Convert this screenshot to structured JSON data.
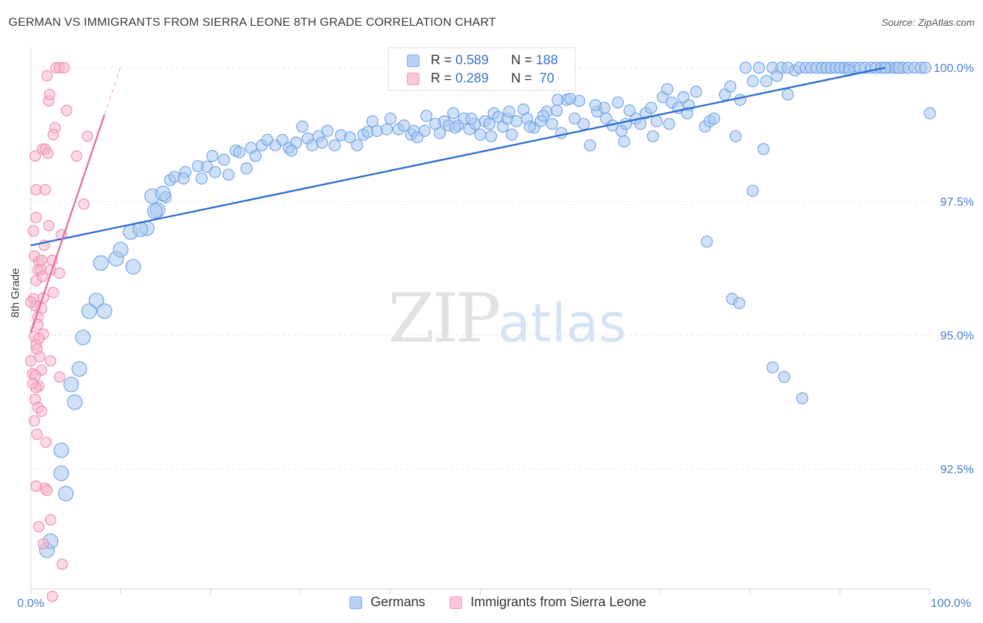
{
  "header": {
    "title": "GERMAN VS IMMIGRANTS FROM SIERRA LEONE 8TH GRADE CORRELATION CHART",
    "source": "Source: ZipAtlas.com"
  },
  "watermark": {
    "zip": "ZIP",
    "atlas": "atlas"
  },
  "legend": {
    "rows": [
      {
        "r_label": "R =",
        "r_value": "0.589",
        "n_label": "N =",
        "n_value": "188",
        "color": "#a9c8f0"
      },
      {
        "r_label": "R =",
        "r_value": "0.289",
        "n_label": "N =",
        "n_value": " 70",
        "color": "#f7b8ca"
      }
    ]
  },
  "bottom_legend": {
    "items": [
      {
        "label": "Germans",
        "color": "#a9c8f0"
      },
      {
        "label": "Immigrants from Sierra Leone",
        "color": "#f7b8ca"
      }
    ]
  },
  "chart_data": {
    "type": "scatter",
    "title": "GERMAN VS IMMIGRANTS FROM SIERRA LEONE 8TH GRADE CORRELATION CHART",
    "xlabel": "",
    "ylabel": "8th Grade",
    "xlim": [
      0,
      100
    ],
    "ylim": [
      90.0,
      100.3
    ],
    "x_tick_labels": [
      "0.0%",
      "100.0%"
    ],
    "y_ticks": [
      92.5,
      95.0,
      97.5,
      100.0
    ],
    "y_tick_labels": [
      "92.5%",
      "95.0%",
      "97.5%",
      "100.0%"
    ],
    "grid": true,
    "legend_position": "top-center",
    "series": [
      {
        "name": "Germans",
        "color": "#6fa3e6",
        "fill": "#a9c8f0",
        "trend": {
          "x": [
            0,
            95
          ],
          "y": [
            96.68,
            100.0
          ],
          "color": "#2e6fd0"
        },
        "points": [
          [
            1.8,
            90.98
          ],
          [
            2.2,
            91.15
          ],
          [
            3.9,
            92.04
          ],
          [
            3.4,
            92.42
          ],
          [
            3.4,
            92.85
          ],
          [
            4.9,
            93.75
          ],
          [
            5.4,
            94.37
          ],
          [
            4.5,
            94.08
          ],
          [
            5.8,
            94.96
          ],
          [
            6.5,
            95.45
          ],
          [
            7.3,
            95.65
          ],
          [
            9.5,
            96.43
          ],
          [
            10.0,
            96.6
          ],
          [
            8.2,
            95.45
          ],
          [
            7.8,
            96.35
          ],
          [
            11.4,
            96.28
          ],
          [
            11.1,
            96.93
          ],
          [
            12.9,
            97.0
          ],
          [
            14.1,
            97.34
          ],
          [
            12.2,
            96.98
          ],
          [
            13.5,
            97.6
          ],
          [
            13.8,
            97.32
          ],
          [
            15.0,
            97.58
          ],
          [
            14.7,
            97.65
          ],
          [
            15.5,
            97.9
          ],
          [
            16.0,
            97.96
          ],
          [
            17.2,
            98.05
          ],
          [
            17.0,
            97.93
          ],
          [
            19.0,
            97.93
          ],
          [
            18.6,
            98.16
          ],
          [
            19.6,
            98.15
          ],
          [
            20.2,
            98.35
          ],
          [
            20.5,
            98.05
          ],
          [
            21.5,
            98.28
          ],
          [
            22.0,
            98.0
          ],
          [
            22.8,
            98.45
          ],
          [
            23.2,
            98.42
          ],
          [
            24.0,
            98.12
          ],
          [
            24.5,
            98.5
          ],
          [
            25.0,
            98.35
          ],
          [
            25.7,
            98.55
          ],
          [
            26.3,
            98.65
          ],
          [
            27.2,
            98.55
          ],
          [
            28.0,
            98.65
          ],
          [
            28.7,
            98.5
          ],
          [
            29.5,
            98.6
          ],
          [
            29.0,
            98.45
          ],
          [
            30.2,
            98.9
          ],
          [
            30.8,
            98.68
          ],
          [
            31.3,
            98.55
          ],
          [
            32.0,
            98.72
          ],
          [
            32.4,
            98.6
          ],
          [
            33.0,
            98.82
          ],
          [
            33.8,
            98.55
          ],
          [
            34.5,
            98.74
          ],
          [
            35.5,
            98.7
          ],
          [
            36.3,
            98.55
          ],
          [
            37.0,
            98.75
          ],
          [
            37.5,
            98.8
          ],
          [
            38.0,
            99.0
          ],
          [
            38.5,
            98.82
          ],
          [
            39.6,
            98.85
          ],
          [
            40.0,
            99.05
          ],
          [
            40.9,
            98.85
          ],
          [
            41.5,
            98.92
          ],
          [
            42.3,
            98.75
          ],
          [
            42.6,
            98.82
          ],
          [
            43.0,
            98.7
          ],
          [
            43.8,
            98.82
          ],
          [
            44.0,
            99.1
          ],
          [
            45.0,
            98.95
          ],
          [
            45.5,
            98.78
          ],
          [
            46.0,
            99.0
          ],
          [
            46.5,
            98.92
          ],
          [
            47.0,
            99.15
          ],
          [
            47.5,
            98.92
          ],
          [
            48.2,
            99.05
          ],
          [
            48.8,
            98.85
          ],
          [
            49.4,
            98.95
          ],
          [
            50.0,
            98.75
          ],
          [
            50.5,
            99.0
          ],
          [
            51.0,
            98.95
          ],
          [
            51.5,
            99.15
          ],
          [
            52.0,
            99.08
          ],
          [
            52.5,
            98.9
          ],
          [
            53.0,
            99.05
          ],
          [
            53.5,
            98.75
          ],
          [
            54.0,
            99.0
          ],
          [
            54.8,
            99.22
          ],
          [
            55.2,
            99.05
          ],
          [
            56.0,
            98.88
          ],
          [
            56.7,
            99.0
          ],
          [
            57.4,
            99.18
          ],
          [
            58.0,
            98.95
          ],
          [
            58.5,
            99.2
          ],
          [
            59.0,
            98.78
          ],
          [
            59.6,
            99.4
          ],
          [
            60.5,
            99.05
          ],
          [
            61.0,
            99.38
          ],
          [
            61.5,
            98.95
          ],
          [
            62.2,
            98.55
          ],
          [
            63.0,
            99.18
          ],
          [
            63.8,
            99.25
          ],
          [
            64.0,
            99.05
          ],
          [
            64.7,
            98.92
          ],
          [
            65.3,
            99.35
          ],
          [
            65.7,
            98.82
          ],
          [
            66.0,
            98.62
          ],
          [
            66.6,
            99.2
          ],
          [
            67.3,
            99.05
          ],
          [
            67.8,
            98.95
          ],
          [
            68.4,
            99.15
          ],
          [
            69.2,
            98.72
          ],
          [
            69.6,
            99.0
          ],
          [
            70.3,
            99.45
          ],
          [
            70.8,
            99.6
          ],
          [
            71.3,
            99.35
          ],
          [
            72.0,
            99.25
          ],
          [
            72.6,
            99.45
          ],
          [
            73.2,
            99.3
          ],
          [
            74.0,
            99.55
          ],
          [
            75.0,
            98.9
          ],
          [
            75.5,
            99.0
          ],
          [
            76.0,
            99.05
          ],
          [
            77.2,
            99.5
          ],
          [
            77.8,
            99.65
          ],
          [
            78.4,
            98.72
          ],
          [
            78.9,
            99.4
          ],
          [
            79.5,
            100.0
          ],
          [
            80.3,
            99.75
          ],
          [
            81.0,
            100.0
          ],
          [
            81.8,
            99.75
          ],
          [
            82.5,
            100.0
          ],
          [
            83.0,
            99.85
          ],
          [
            83.5,
            100.0
          ],
          [
            84.2,
            100.0
          ],
          [
            85.0,
            99.95
          ],
          [
            85.5,
            100.0
          ],
          [
            86.2,
            100.0
          ],
          [
            86.8,
            100.0
          ],
          [
            87.4,
            100.0
          ],
          [
            88.0,
            100.0
          ],
          [
            88.5,
            100.0
          ],
          [
            89.0,
            100.0
          ],
          [
            89.5,
            100.0
          ],
          [
            90.0,
            100.0
          ],
          [
            90.5,
            100.0
          ],
          [
            91.0,
            100.0
          ],
          [
            91.6,
            100.0
          ],
          [
            92.2,
            100.0
          ],
          [
            92.8,
            100.0
          ],
          [
            93.5,
            100.0
          ],
          [
            94.0,
            100.0
          ],
          [
            94.6,
            100.0
          ],
          [
            95.1,
            100.0
          ],
          [
            95.6,
            100.0
          ],
          [
            96.2,
            100.0
          ],
          [
            97.0,
            100.0
          ],
          [
            97.6,
            100.0
          ],
          [
            98.3,
            100.0
          ],
          [
            99.0,
            100.0
          ],
          [
            99.5,
            100.0
          ],
          [
            100.0,
            99.15
          ],
          [
            75.2,
            96.75
          ],
          [
            78.0,
            95.68
          ],
          [
            78.8,
            95.6
          ],
          [
            82.5,
            94.4
          ],
          [
            83.8,
            94.22
          ],
          [
            85.8,
            93.82
          ],
          [
            80.3,
            97.7
          ],
          [
            81.5,
            98.48
          ],
          [
            84.2,
            99.5
          ],
          [
            91.0,
            99.95
          ],
          [
            95.0,
            100.0
          ],
          [
            96.5,
            100.0
          ],
          [
            73.0,
            99.15
          ],
          [
            71.0,
            98.95
          ],
          [
            69.0,
            99.25
          ],
          [
            66.2,
            98.95
          ],
          [
            62.8,
            99.3
          ],
          [
            60.0,
            99.42
          ],
          [
            58.6,
            99.4
          ],
          [
            57.0,
            99.1
          ],
          [
            55.5,
            98.9
          ],
          [
            53.2,
            99.18
          ],
          [
            51.2,
            98.72
          ],
          [
            49.0,
            99.05
          ],
          [
            47.2,
            98.88
          ]
        ]
      },
      {
        "name": "Immigrants from Sierra Leone",
        "color": "#ef8fae",
        "fill": "#f7b8ca",
        "trend": {
          "x": [
            0,
            8.2
          ],
          "y": [
            95.05,
            99.12
          ],
          "color": "#e8709a"
        },
        "points": [
          [
            2.8,
            100.0
          ],
          [
            3.2,
            100.0
          ],
          [
            3.7,
            100.0
          ],
          [
            1.8,
            99.85
          ],
          [
            2.0,
            99.38
          ],
          [
            2.1,
            99.5
          ],
          [
            4.0,
            99.2
          ],
          [
            2.7,
            98.88
          ],
          [
            2.5,
            98.75
          ],
          [
            6.3,
            98.72
          ],
          [
            1.3,
            98.48
          ],
          [
            1.6,
            98.48
          ],
          [
            1.9,
            98.4
          ],
          [
            0.5,
            98.35
          ],
          [
            5.1,
            98.35
          ],
          [
            0.6,
            97.72
          ],
          [
            1.6,
            97.72
          ],
          [
            5.9,
            97.45
          ],
          [
            0.6,
            97.2
          ],
          [
            3.4,
            96.88
          ],
          [
            1.5,
            96.68
          ],
          [
            0.4,
            96.48
          ],
          [
            0.9,
            96.38
          ],
          [
            1.2,
            96.4
          ],
          [
            2.4,
            96.4
          ],
          [
            0.8,
            96.22
          ],
          [
            1.1,
            96.22
          ],
          [
            2.2,
            96.22
          ],
          [
            3.2,
            96.16
          ],
          [
            0.6,
            96.02
          ],
          [
            0.3,
            95.68
          ],
          [
            1.4,
            95.7
          ],
          [
            0.5,
            95.55
          ],
          [
            0.0,
            95.62
          ],
          [
            1.2,
            95.5
          ],
          [
            0.8,
            95.34
          ],
          [
            1.4,
            95.02
          ],
          [
            0.4,
            94.98
          ],
          [
            0.9,
            94.94
          ],
          [
            0.6,
            94.82
          ],
          [
            0.7,
            94.74
          ],
          [
            0.0,
            94.52
          ],
          [
            2.2,
            94.52
          ],
          [
            1.2,
            94.35
          ],
          [
            0.2,
            94.28
          ],
          [
            0.5,
            94.25
          ],
          [
            3.2,
            94.22
          ],
          [
            0.9,
            94.05
          ],
          [
            0.6,
            94.02
          ],
          [
            0.5,
            93.8
          ],
          [
            0.8,
            93.65
          ],
          [
            1.2,
            93.58
          ],
          [
            0.4,
            93.4
          ],
          [
            0.6,
            92.18
          ],
          [
            1.6,
            92.14
          ],
          [
            1.8,
            92.1
          ],
          [
            2.2,
            91.55
          ],
          [
            0.9,
            91.42
          ],
          [
            1.4,
            91.1
          ],
          [
            3.5,
            90.72
          ],
          [
            2.4,
            90.12
          ],
          [
            0.3,
            96.95
          ],
          [
            0.8,
            95.2
          ],
          [
            1.0,
            94.6
          ],
          [
            1.7,
            93.0
          ],
          [
            2.5,
            95.8
          ],
          [
            0.2,
            94.1
          ],
          [
            1.3,
            96.1
          ],
          [
            2.0,
            97.05
          ],
          [
            0.7,
            93.15
          ]
        ]
      }
    ]
  }
}
